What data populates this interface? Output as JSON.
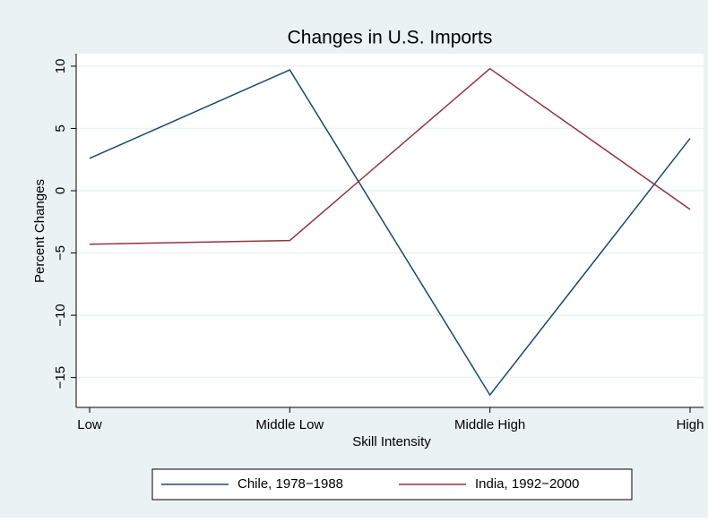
{
  "chart_data": {
    "type": "line",
    "title": "Changes in U.S. Imports",
    "x_label": "Skill Intensity",
    "y_label": "Percent Changes",
    "categories": [
      "Low",
      "Middle Low",
      "Middle High",
      "High"
    ],
    "series": [
      {
        "name": "Chile, 1978−1988",
        "color": "#1a476f",
        "values": [
          2.6,
          9.7,
          -16.4,
          4.2
        ]
      },
      {
        "name": "India, 1992−2000",
        "color": "#90353b",
        "values": [
          -4.3,
          -4.0,
          9.8,
          -1.5
        ]
      }
    ],
    "ylim": [
      -17.4,
      11
    ],
    "yticks": [
      {
        "value": -15,
        "label": "−15"
      },
      {
        "value": -10,
        "label": "−10"
      },
      {
        "value": -5,
        "label": "−5"
      },
      0,
      5,
      10
    ],
    "grid": true,
    "legend": "bottom"
  }
}
